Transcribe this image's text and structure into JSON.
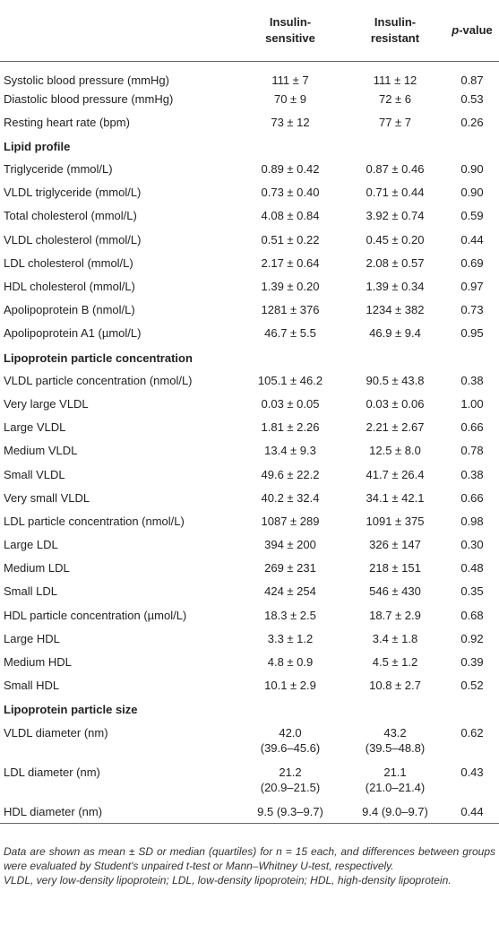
{
  "header": {
    "col1": "",
    "col2": "Insulin-\nsensitive",
    "col2_line1": "Insulin-",
    "col2_line2": "sensitive",
    "col3_line1": "Insulin-",
    "col3_line2": "resistant",
    "col4_italic": "p",
    "col4_rest": "-value"
  },
  "rows": [
    {
      "type": "row",
      "label": "Systolic blood pressure (mmHg)",
      "a": "111 ± 7",
      "b": "111 ± 12",
      "p": "0.87"
    },
    {
      "type": "row",
      "label": "Diastolic blood pressure (mmHg)",
      "a": "70 ± 9",
      "b": "72 ± 6",
      "p": "0.53"
    },
    {
      "type": "row",
      "label": "Resting heart rate (bpm)",
      "a": "73 ± 12",
      "b": "77 ± 7",
      "p": "0.26"
    },
    {
      "type": "sec",
      "label": "Lipid profile"
    },
    {
      "type": "row",
      "label": "Triglyceride (mmol/L)",
      "a": "0.89 ± 0.42",
      "b": "0.87 ± 0.46",
      "p": "0.90"
    },
    {
      "type": "row",
      "label": "VLDL triglyceride (mmol/L)",
      "a": "0.73 ± 0.40",
      "b": "0.71 ± 0.44",
      "p": "0.90"
    },
    {
      "type": "row",
      "label": "Total cholesterol (mmol/L)",
      "a": "4.08 ± 0.84",
      "b": "3.92 ± 0.74",
      "p": "0.59"
    },
    {
      "type": "row",
      "label": "VLDL cholesterol (mmol/L)",
      "a": "0.51 ± 0.22",
      "b": "0.45 ± 0.20",
      "p": "0.44"
    },
    {
      "type": "row",
      "label": "LDL cholesterol (mmol/L)",
      "a": "2.17 ± 0.64",
      "b": "2.08 ± 0.57",
      "p": "0.69"
    },
    {
      "type": "row",
      "label": "HDL cholesterol (mmol/L)",
      "a": "1.39 ± 0.20",
      "b": "1.39 ± 0.34",
      "p": "0.97"
    },
    {
      "type": "row",
      "label": "Apolipoprotein B (nmol/L)",
      "a": "1281 ± 376",
      "b": "1234 ± 382",
      "p": "0.73"
    },
    {
      "type": "row",
      "label": "Apolipoprotein A1 (µmol/L)",
      "a": "46.7 ± 5.5",
      "b": "46.9 ± 9.4",
      "p": "0.95"
    },
    {
      "type": "sec",
      "label": "Lipoprotein particle concentration"
    },
    {
      "type": "row",
      "label": "VLDL particle concentration (nmol/L)",
      "a": "105.1 ± 46.2",
      "b": "90.5 ± 43.8",
      "p": "0.38"
    },
    {
      "type": "row",
      "label": "Very large VLDL",
      "a": "0.03 ± 0.05",
      "b": "0.03 ± 0.06",
      "p": "1.00"
    },
    {
      "type": "row",
      "label": "Large VLDL",
      "a": "1.81 ± 2.26",
      "b": "2.21 ± 2.67",
      "p": "0.66"
    },
    {
      "type": "row",
      "label": "Medium VLDL",
      "a": "13.4 ± 9.3",
      "b": "12.5 ± 8.0",
      "p": "0.78"
    },
    {
      "type": "row",
      "label": "Small VLDL",
      "a": "49.6 ± 22.2",
      "b": "41.7 ± 26.4",
      "p": "0.38"
    },
    {
      "type": "row",
      "label": "Very small VLDL",
      "a": "40.2 ± 32.4",
      "b": "34.1 ± 42.1",
      "p": "0.66"
    },
    {
      "type": "row",
      "label": "LDL particle concentration (nmol/L)",
      "a": "1087 ± 289",
      "b": "1091 ± 375",
      "p": "0.98"
    },
    {
      "type": "row",
      "label": "Large LDL",
      "a": "394 ± 200",
      "b": "326 ± 147",
      "p": "0.30"
    },
    {
      "type": "row",
      "label": "Medium LDL",
      "a": "269 ± 231",
      "b": "218 ± 151",
      "p": "0.48"
    },
    {
      "type": "row",
      "label": "Small LDL",
      "a": "424 ± 254",
      "b": "546 ± 430",
      "p": "0.35"
    },
    {
      "type": "row",
      "label": "HDL particle concentration (µmol/L)",
      "a": "18.3 ± 2.5",
      "b": "18.7 ± 2.9",
      "p": "0.68"
    },
    {
      "type": "row",
      "label": "Large HDL",
      "a": "3.3 ± 1.2",
      "b": "3.4 ± 1.8",
      "p": "0.92"
    },
    {
      "type": "row",
      "label": "Medium HDL",
      "a": "4.8 ± 0.9",
      "b": "4.5 ± 1.2",
      "p": "0.39"
    },
    {
      "type": "row",
      "label": "Small HDL",
      "a": "10.1 ± 2.9",
      "b": "10.8 ± 2.7",
      "p": "0.52"
    },
    {
      "type": "sec",
      "label": "Lipoprotein particle size"
    },
    {
      "type": "tall",
      "label": "VLDL diameter (nm)",
      "a": "42.0",
      "a2": "(39.6–45.6)",
      "b": "43.2",
      "b2": "(39.5–48.8)",
      "p": "0.62"
    },
    {
      "type": "tall",
      "label": "LDL diameter (nm)",
      "a": "21.2",
      "a2": "(20.9–21.5)",
      "b": "21.1",
      "b2": "(21.0–21.4)",
      "p": "0.43"
    },
    {
      "type": "row",
      "label": "HDL diameter (nm)",
      "a": "9.5 (9.3–9.7)",
      "b": "9.4 (9.0–9.7)",
      "p": "0.44"
    }
  ],
  "footnotes": [
    "Data are shown as mean ± SD or median (quartiles) for n = 15 each, and differences between groups were evaluated by Student's unpaired t-test or Mann–Whitney U-test, respectively.",
    "VLDL, very low-density lipoprotein; LDL, low-density lipoprotein; HDL, high-density lipoprotein."
  ]
}
